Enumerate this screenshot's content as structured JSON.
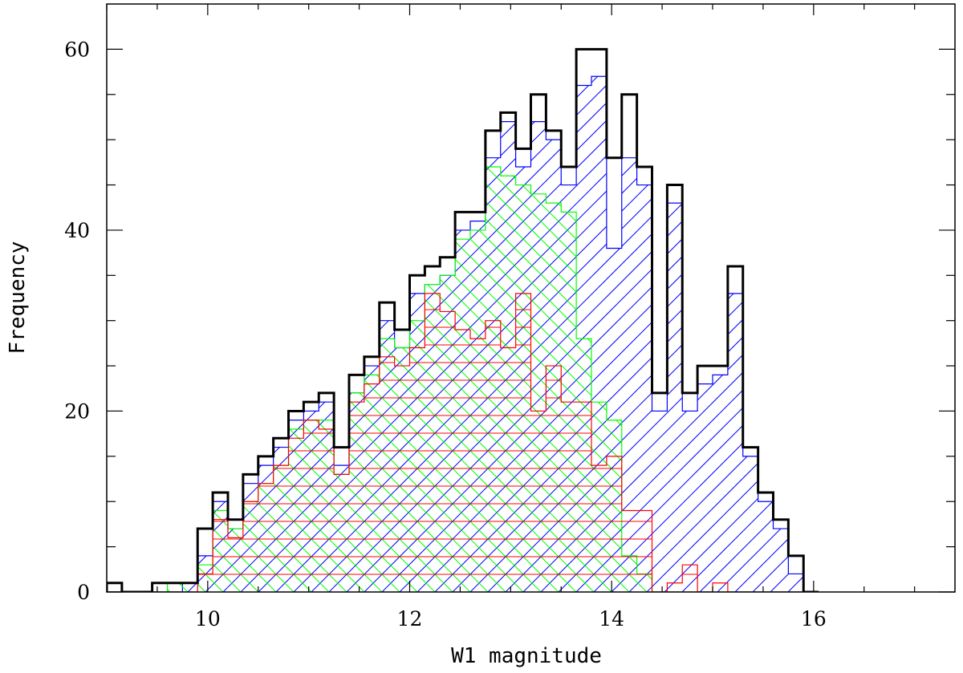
{
  "chart_data": {
    "type": "histogram",
    "title": "",
    "xlabel": "W1 magnitude",
    "ylabel": "Frequency",
    "xlim": [
      9.0,
      17.4
    ],
    "ylim": [
      0,
      65
    ],
    "bin_width": 0.15,
    "bin_start": 9.0,
    "x_ticks": [
      10,
      12,
      14,
      16
    ],
    "y_ticks": [
      0,
      20,
      40,
      60
    ],
    "grid": false,
    "legend": "none",
    "series": [
      {
        "color": "#000000",
        "fill": "none",
        "values": [
          1,
          0,
          0,
          1,
          1,
          1,
          7,
          11,
          8,
          13,
          15,
          17,
          20,
          21,
          22,
          16,
          24,
          26,
          32,
          29,
          35,
          36,
          37,
          42,
          42,
          51,
          53,
          49,
          55,
          51,
          47,
          60,
          60,
          48,
          55,
          47,
          22,
          45,
          22,
          25,
          25,
          36,
          16,
          11,
          8,
          4,
          0
        ]
      },
      {
        "color": "#0000ff",
        "fill": "hatch-diagonal",
        "values": [
          0,
          0,
          0,
          0,
          0,
          1,
          4,
          10,
          7,
          12,
          14,
          16,
          19,
          20,
          21,
          14,
          22,
          25,
          30,
          27,
          33,
          34,
          35,
          40,
          41,
          48,
          52,
          47,
          52,
          50,
          45,
          56,
          57,
          38,
          48,
          45,
          20,
          43,
          20,
          23,
          24,
          33,
          15,
          10,
          7,
          2,
          0
        ]
      },
      {
        "color": "#00ff00",
        "fill": "hatch-antidiagonal",
        "values": [
          0,
          0,
          0,
          0,
          1,
          1,
          3,
          9,
          7,
          10,
          12,
          14,
          18,
          19,
          19,
          13,
          22,
          24,
          28,
          27,
          30,
          34,
          35,
          39,
          40,
          47,
          46,
          45,
          44,
          43,
          42,
          28,
          21,
          19,
          4,
          2,
          0,
          0,
          0,
          0,
          0,
          0,
          0,
          0,
          0,
          0,
          0
        ]
      },
      {
        "color": "#ff0000",
        "fill": "hatch-horizontal",
        "values": [
          0,
          0,
          0,
          0,
          0,
          0,
          2,
          8,
          6,
          10,
          12,
          14,
          17,
          19,
          18,
          13,
          21,
          23,
          26,
          25,
          27,
          33,
          31,
          29,
          28,
          30,
          27,
          33,
          20,
          25,
          21,
          21,
          14,
          15,
          9,
          9,
          0,
          1,
          3,
          0,
          1,
          0,
          0,
          0,
          0,
          0,
          0
        ]
      }
    ]
  }
}
